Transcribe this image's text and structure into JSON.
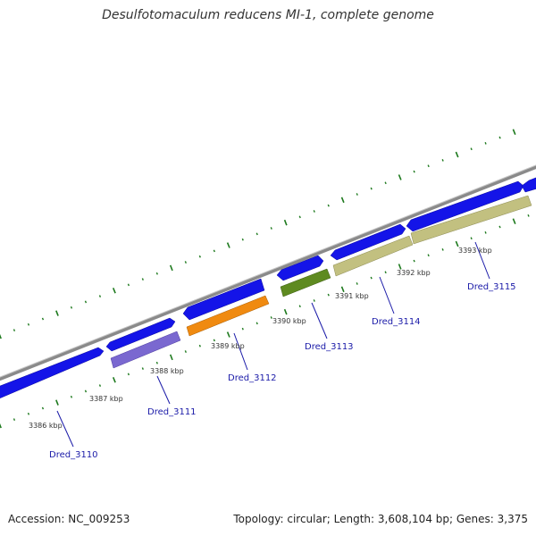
{
  "title": "Desulfotomaculum reducens MI-1, complete genome",
  "accession": "Accession: NC_009253",
  "summary": "Topology: circular; Length: 3,608,104 bp; Genes: 3,375",
  "kbp_labels": [
    "3386 kbp",
    "3387 kbp",
    "3388 kbp",
    "3389 kbp",
    "3390 kbp",
    "3391 kbp",
    "3392 kbp",
    "3393 kbp"
  ],
  "genes": [
    {
      "name": "Dred_3110"
    },
    {
      "name": "Dred_3111"
    },
    {
      "name": "Dred_3112"
    },
    {
      "name": "Dred_3113"
    },
    {
      "name": "Dred_3114"
    },
    {
      "name": "Dred_3115"
    }
  ],
  "colors": {
    "forward_gene": "#1414e8",
    "backbone": "#8c8c8c",
    "tick": "#1e7a1e",
    "purple_feature": "#7a68d0",
    "orange_feature": "#f08a10",
    "green_feature": "#5e8a20",
    "khaki_feature": "#c2c080",
    "label": "#1a1aa8"
  }
}
